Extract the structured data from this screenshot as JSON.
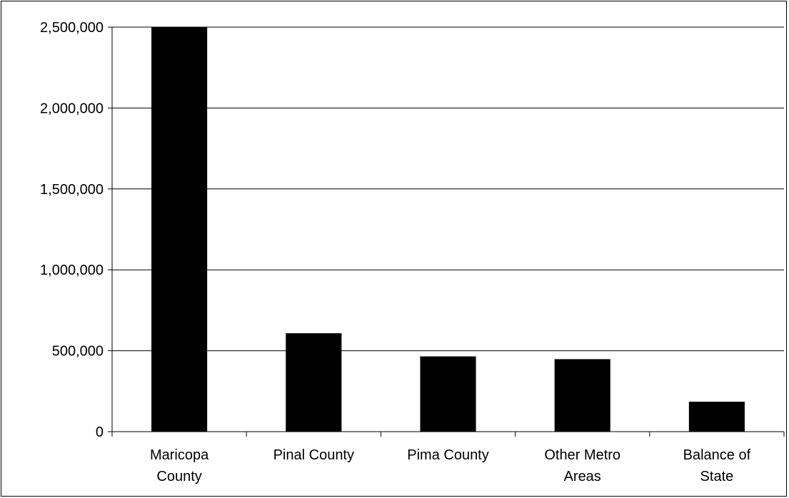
{
  "chart_data": {
    "type": "bar",
    "categories": [
      [
        "Maricopa",
        "County"
      ],
      [
        "Pinal County"
      ],
      [
        "Pima County"
      ],
      [
        "Other Metro",
        "Areas"
      ],
      [
        "Balance of",
        "State"
      ]
    ],
    "values": [
      2500000,
      608000,
      465000,
      448000,
      185000
    ],
    "ylim": [
      0,
      2500000
    ],
    "yticks": [
      0,
      500000,
      1000000,
      1500000,
      2000000,
      2500000
    ],
    "ytick_labels": [
      "0",
      "500,000",
      "1,000,000",
      "1,500,000",
      "2,000,000",
      "2,500,000"
    ],
    "title": "",
    "xlabel": "",
    "ylabel": "",
    "grid": "horizontal",
    "legend": "none",
    "bar_color": "#000000"
  }
}
